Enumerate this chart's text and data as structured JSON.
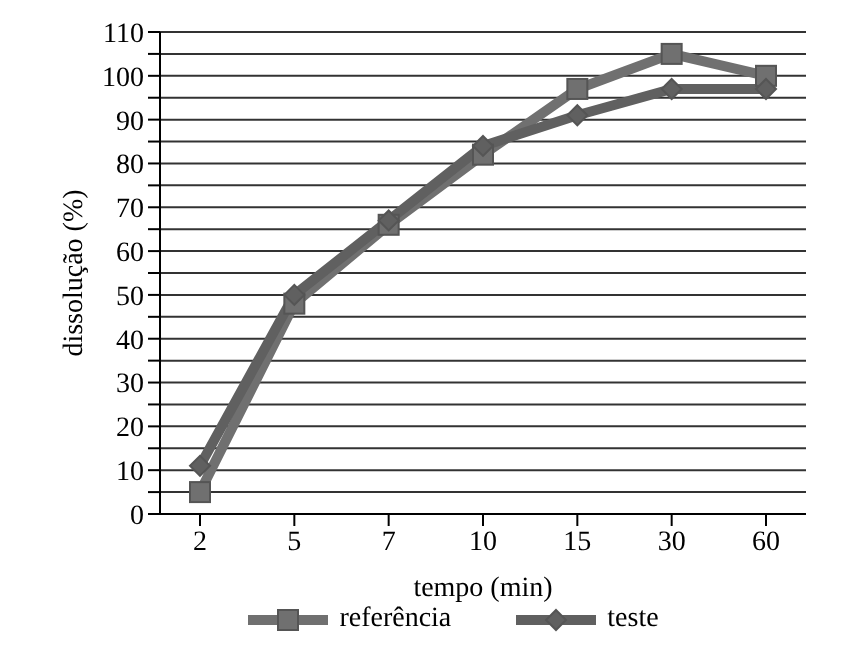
{
  "chart_data": {
    "type": "line",
    "xlabel": "tempo (min)",
    "ylabel": "dissolução (%)",
    "categories": [
      "2",
      "5",
      "7",
      "10",
      "15",
      "30",
      "60"
    ],
    "series": [
      {
        "name": "referência",
        "color": "#707070",
        "marker": "square",
        "values": [
          5,
          48,
          66,
          82,
          97,
          105,
          100
        ]
      },
      {
        "name": "teste",
        "color": "#606060",
        "marker": "diamond",
        "values": [
          11,
          50,
          67,
          84,
          91,
          97,
          97
        ]
      }
    ],
    "ylim": [
      0,
      110
    ],
    "yticks": [
      0,
      {
        "value": 5,
        "label": null
      },
      10,
      {
        "value": 15,
        "label": null
      },
      20,
      {
        "value": 25,
        "label": null
      },
      30,
      {
        "value": 35,
        "label": null
      },
      40,
      {
        "value": 45,
        "label": null
      },
      50,
      {
        "value": 55,
        "label": null
      },
      60,
      {
        "value": 65,
        "label": null
      },
      70,
      {
        "value": 75,
        "label": null
      },
      80,
      {
        "value": 85,
        "label": null
      },
      90,
      {
        "value": 95,
        "label": null
      },
      100,
      {
        "value": 105,
        "label": null
      },
      110
    ],
    "grid": "y",
    "legend": "bottom",
    "line_style": "solid"
  }
}
